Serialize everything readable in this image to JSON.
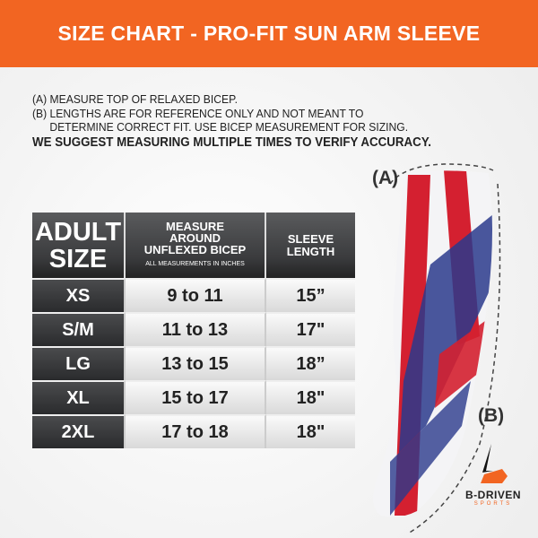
{
  "title": "SIZE CHART - PRO-FIT SUN ARM SLEEVE",
  "notes": {
    "a": "(A) MEASURE TOP OF RELAXED BICEP.",
    "b1": "(B) LENGTHS ARE FOR REFERENCE ONLY AND NOT MEANT TO",
    "b2": "DETERMINE CORRECT FIT. USE BICEP MEASUREMENT FOR SIZING.",
    "suggest": "WE SUGGEST MEASURING MULTIPLE TIMES TO VERIFY ACCURACY."
  },
  "table": {
    "headers": {
      "size1": "ADULT",
      "size2": "SIZE",
      "measure1": "MEASURE",
      "measure2": "AROUND",
      "measure3": "UNFLEXED BICEP",
      "measure_note": "ALL MEASUREMENTS IN INCHES",
      "sleeve1": "SLEEVE",
      "sleeve2": "LENGTH"
    },
    "rows": [
      {
        "size": "XS",
        "bicep": "9 to 11",
        "length": "15”"
      },
      {
        "size": "S/M",
        "bicep": "11 to 13",
        "length": "17\""
      },
      {
        "size": "LG",
        "bicep": "13 to 15",
        "length": "18”"
      },
      {
        "size": "XL",
        "bicep": "15 to 17",
        "length": "18\""
      },
      {
        "size": "2XL",
        "bicep": "17 to 18",
        "length": "18\""
      }
    ]
  },
  "diagram": {
    "label_a": "(A)",
    "label_b": "(B)"
  },
  "logo": {
    "name": "B-DRIVEN",
    "sub": "SPORTS"
  },
  "colors": {
    "accent": "#f26522",
    "header": "#3a3b3d",
    "flag_red": "#d42030",
    "flag_blue": "#2a3a8c"
  }
}
